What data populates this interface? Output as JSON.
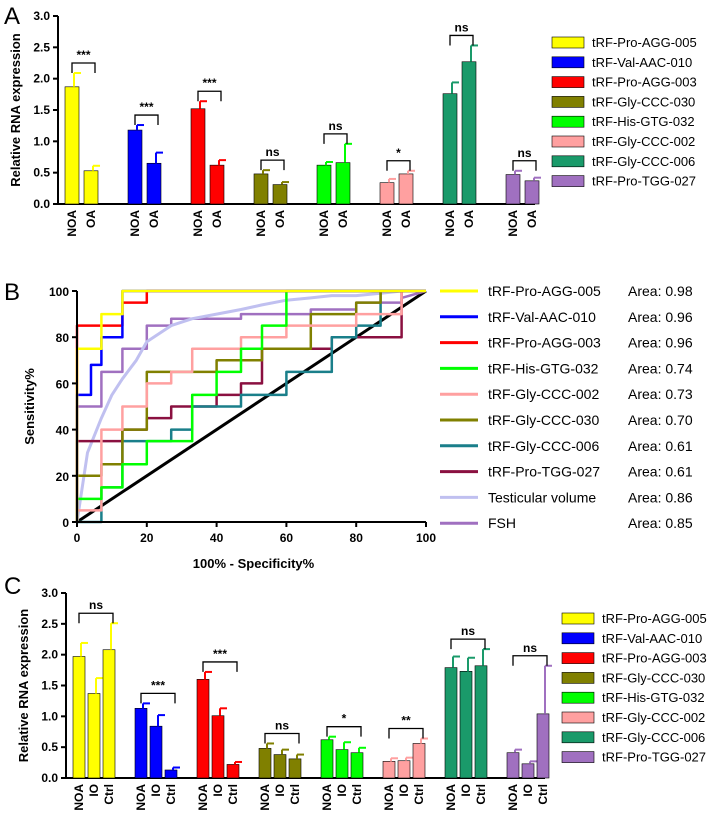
{
  "chart_data": [
    {
      "panel": "A",
      "type": "bar",
      "ylabel": "Relative RNA expression",
      "ylim": [
        0,
        3.0
      ],
      "yticks": [
        "0.0",
        "0.5",
        "1.0",
        "1.5",
        "2.0",
        "2.5",
        "3.0"
      ],
      "groups": [
        {
          "name": "tRF-Pro-AGG-005",
          "color": "#ffff00",
          "bars": [
            {
              "label": "NOA",
              "value": 1.87,
              "err": 0.22
            },
            {
              "label": "OA",
              "value": 0.53,
              "err": 0.08
            }
          ],
          "sig": "***"
        },
        {
          "name": "tRF-Val-AAC-010",
          "color": "#0000ff",
          "bars": [
            {
              "label": "NOA",
              "value": 1.18,
              "err": 0.08
            },
            {
              "label": "OA",
              "value": 0.65,
              "err": 0.17
            }
          ],
          "sig": "***"
        },
        {
          "name": "tRF-Pro-AGG-003",
          "color": "#ff0000",
          "bars": [
            {
              "label": "NOA",
              "value": 1.52,
              "err": 0.12
            },
            {
              "label": "OA",
              "value": 0.62,
              "err": 0.08
            }
          ],
          "sig": "***"
        },
        {
          "name": "tRF-Gly-CCC-030",
          "color": "#808000",
          "bars": [
            {
              "label": "NOA",
              "value": 0.48,
              "err": 0.06
            },
            {
              "label": "OA",
              "value": 0.31,
              "err": 0.04
            }
          ],
          "sig": "ns"
        },
        {
          "name": "tRF-His-GTG-032",
          "color": "#00ff00",
          "bars": [
            {
              "label": "NOA",
              "value": 0.62,
              "err": 0.05
            },
            {
              "label": "OA",
              "value": 0.66,
              "err": 0.3
            }
          ],
          "sig": "ns"
        },
        {
          "name": "tRF-Gly-CCC-002",
          "color": "#ffa0a0",
          "bars": [
            {
              "label": "NOA",
              "value": 0.34,
              "err": 0.06
            },
            {
              "label": "OA",
              "value": 0.48,
              "err": 0.05
            }
          ],
          "sig": "*"
        },
        {
          "name": "tRF-Gly-CCC-006",
          "color": "#1a9a6a",
          "bars": [
            {
              "label": "NOA",
              "value": 1.76,
              "err": 0.18
            },
            {
              "label": "OA",
              "value": 2.27,
              "err": 0.26
            }
          ],
          "sig": "ns"
        },
        {
          "name": "tRF-Pro-TGG-027",
          "color": "#a070c0",
          "bars": [
            {
              "label": "NOA",
              "value": 0.47,
              "err": 0.06
            },
            {
              "label": "OA",
              "value": 0.37,
              "err": 0.05
            }
          ],
          "sig": "ns"
        }
      ],
      "legend": [
        "tRF-Pro-AGG-005",
        "tRF-Val-AAC-010",
        "tRF-Pro-AGG-003",
        "tRF-Gly-CCC-030",
        "tRF-His-GTG-032",
        "tRF-Gly-CCC-002",
        "tRF-Gly-CCC-006",
        "tRF-Pro-TGG-027"
      ],
      "legend_colors": [
        "#ffff00",
        "#0000ff",
        "#ff0000",
        "#808000",
        "#00ff00",
        "#ffa0a0",
        "#1a9a6a",
        "#a070c0"
      ]
    },
    {
      "panel": "B",
      "type": "line",
      "xlabel": "100% - Specificity%",
      "ylabel": "Sensitivity%",
      "xlim": [
        0,
        100
      ],
      "ylim": [
        0,
        100
      ],
      "xticks": [
        "0",
        "20",
        "40",
        "60",
        "80",
        "100"
      ],
      "yticks": [
        "0",
        "20",
        "40",
        "60",
        "80",
        "100"
      ],
      "series": [
        {
          "name": "tRF-Pro-AGG-005",
          "color": "#ffff00",
          "area": "Area: 0.98",
          "x": [
            0,
            0,
            7,
            7,
            13,
            13,
            100
          ],
          "y": [
            0,
            75,
            75,
            90,
            90,
            100,
            100
          ]
        },
        {
          "name": "tRF-Val-AAC-010",
          "color": "#0000ff",
          "x": [
            0,
            0,
            4,
            4,
            7,
            7,
            13,
            13,
            100
          ],
          "y": [
            0,
            55,
            55,
            68,
            68,
            80,
            80,
            100,
            100
          ],
          "area": "Area: 0.96"
        },
        {
          "name": "tRF-Pro-AGG-003",
          "color": "#ff0000",
          "x": [
            0,
            0,
            13,
            13,
            20,
            20,
            100
          ],
          "y": [
            0,
            85,
            85,
            95,
            95,
            100,
            100
          ],
          "area": "Area: 0.96"
        },
        {
          "name": "tRF-His-GTG-032",
          "color": "#00ff00",
          "x": [
            0,
            0,
            7,
            7,
            13,
            13,
            20,
            20,
            33,
            33,
            40,
            40,
            47,
            47,
            53,
            53,
            60,
            60,
            100
          ],
          "y": [
            0,
            10,
            10,
            15,
            15,
            25,
            25,
            35,
            35,
            55,
            55,
            65,
            65,
            75,
            75,
            85,
            85,
            100,
            100
          ],
          "area": "Area: 0.74"
        },
        {
          "name": "tRF-Gly-CCC-002",
          "color": "#ffa0a0",
          "x": [
            0,
            0,
            7,
            7,
            13,
            13,
            20,
            20,
            27,
            27,
            33,
            33,
            47,
            47,
            60,
            60,
            80,
            80,
            93,
            93,
            100
          ],
          "y": [
            0,
            5,
            5,
            40,
            40,
            50,
            50,
            60,
            60,
            65,
            65,
            75,
            75,
            80,
            80,
            85,
            85,
            90,
            90,
            100,
            100
          ],
          "area": "Area: 0.73"
        },
        {
          "name": "tRF-Gly-CCC-030",
          "color": "#808000",
          "x": [
            0,
            0,
            7,
            7,
            13,
            13,
            20,
            20,
            40,
            40,
            53,
            53,
            67,
            67,
            80,
            80,
            87,
            87,
            100
          ],
          "y": [
            0,
            20,
            20,
            25,
            25,
            40,
            40,
            65,
            65,
            70,
            70,
            75,
            75,
            90,
            90,
            95,
            95,
            100,
            100
          ],
          "area": "Area: 0.70"
        },
        {
          "name": "tRF-Gly-CCC-006",
          "color": "#1a7f8a",
          "x": [
            0,
            7,
            7,
            13,
            13,
            27,
            27,
            33,
            33,
            47,
            47,
            60,
            60,
            73,
            73,
            80,
            80,
            87,
            87,
            100
          ],
          "y": [
            0,
            0,
            15,
            15,
            35,
            35,
            40,
            40,
            50,
            50,
            55,
            55,
            65,
            65,
            80,
            80,
            85,
            85,
            100,
            100
          ],
          "area": "Area: 0.61"
        },
        {
          "name": "tRF-Pro-TGG-027",
          "color": "#8a1040",
          "x": [
            0,
            0,
            13,
            13,
            20,
            20,
            27,
            27,
            40,
            40,
            47,
            47,
            53,
            53,
            73,
            73,
            80,
            80,
            93,
            93,
            100
          ],
          "y": [
            0,
            35,
            35,
            40,
            40,
            45,
            45,
            50,
            50,
            55,
            55,
            60,
            60,
            75,
            75,
            80,
            80,
            80,
            80,
            100,
            100
          ],
          "area": "Area: 0.61"
        },
        {
          "name": "Testicular volume",
          "color": "#c0c0f0",
          "x": [
            0,
            3,
            7,
            10,
            13,
            17,
            20,
            27,
            33,
            40,
            47,
            53,
            60,
            67,
            73,
            80,
            87,
            93,
            100
          ],
          "y": [
            0,
            30,
            45,
            55,
            62,
            70,
            78,
            85,
            88,
            90,
            92,
            94,
            96,
            97,
            98,
            98,
            99,
            100,
            100
          ],
          "area": "Area: 0.86",
          "smooth": true
        },
        {
          "name": "FSH",
          "color": "#a070c0",
          "x": [
            0,
            0,
            7,
            7,
            13,
            13,
            20,
            20,
            27,
            27,
            47,
            47,
            67,
            67,
            80,
            80,
            93,
            93,
            100
          ],
          "y": [
            0,
            50,
            50,
            65,
            65,
            75,
            75,
            85,
            85,
            88,
            88,
            90,
            90,
            92,
            92,
            95,
            95,
            97,
            100
          ],
          "area": "Area: 0.85"
        }
      ],
      "diagonal": {
        "color": "#000000",
        "x": [
          0,
          100
        ],
        "y": [
          0,
          100
        ]
      }
    },
    {
      "panel": "C",
      "type": "bar",
      "ylabel": "Relative RNA expression",
      "ylim": [
        0,
        3.0
      ],
      "yticks": [
        "0.0",
        "0.5",
        "1.0",
        "1.5",
        "2.0",
        "2.5",
        "3.0"
      ],
      "groups": [
        {
          "name": "tRF-Pro-AGG-005",
          "color": "#ffff00",
          "bars": [
            {
              "label": "NOA",
              "value": 1.97,
              "err": 0.22
            },
            {
              "label": "IO",
              "value": 1.37,
              "err": 0.25
            },
            {
              "label": "Ctrl",
              "value": 2.08,
              "err": 0.43
            }
          ],
          "sig": "ns"
        },
        {
          "name": "tRF-Val-AAC-010",
          "color": "#0000ff",
          "bars": [
            {
              "label": "NOA",
              "value": 1.13,
              "err": 0.08
            },
            {
              "label": "IO",
              "value": 0.84,
              "err": 0.18
            },
            {
              "label": "Ctrl",
              "value": 0.13,
              "err": 0.04
            }
          ],
          "sig": "***"
        },
        {
          "name": "tRF-Pro-AGG-003",
          "color": "#ff0000",
          "bars": [
            {
              "label": "NOA",
              "value": 1.6,
              "err": 0.12
            },
            {
              "label": "IO",
              "value": 1.01,
              "err": 0.12
            },
            {
              "label": "Ctrl",
              "value": 0.22,
              "err": 0.04
            }
          ],
          "sig": "***"
        },
        {
          "name": "tRF-Gly-CCC-030",
          "color": "#808000",
          "bars": [
            {
              "label": "NOA",
              "value": 0.48,
              "err": 0.08
            },
            {
              "label": "IO",
              "value": 0.38,
              "err": 0.08
            },
            {
              "label": "Ctrl",
              "value": 0.31,
              "err": 0.07
            }
          ],
          "sig": "ns"
        },
        {
          "name": "tRF-His-GTG-032",
          "color": "#00ff00",
          "bars": [
            {
              "label": "NOA",
              "value": 0.62,
              "err": 0.05
            },
            {
              "label": "IO",
              "value": 0.46,
              "err": 0.12
            },
            {
              "label": "Ctrl",
              "value": 0.41,
              "err": 0.08
            }
          ],
          "sig": "*"
        },
        {
          "name": "tRF-Gly-CCC-002",
          "color": "#ffa0a0",
          "bars": [
            {
              "label": "NOA",
              "value": 0.27,
              "err": 0.05
            },
            {
              "label": "IO",
              "value": 0.28,
              "err": 0.05
            },
            {
              "label": "Ctrl",
              "value": 0.56,
              "err": 0.08
            }
          ],
          "sig": "**"
        },
        {
          "name": "tRF-Gly-CCC-006",
          "color": "#1a9a6a",
          "bars": [
            {
              "label": "NOA",
              "value": 1.79,
              "err": 0.18
            },
            {
              "label": "IO",
              "value": 1.73,
              "err": 0.22
            },
            {
              "label": "Ctrl",
              "value": 1.82,
              "err": 0.27
            }
          ],
          "sig": "ns"
        },
        {
          "name": "tRF-Pro-TGG-027",
          "color": "#a070c0",
          "bars": [
            {
              "label": "NOA",
              "value": 0.41,
              "err": 0.05
            },
            {
              "label": "IO",
              "value": 0.23,
              "err": 0.04
            },
            {
              "label": "Ctrl",
              "value": 1.04,
              "err": 0.78
            }
          ],
          "sig": "ns"
        }
      ],
      "legend": [
        "tRF-Pro-AGG-005",
        "tRF-Val-AAC-010",
        "tRF-Pro-AGG-003",
        "tRF-Gly-CCC-030",
        "tRF-His-GTG-032",
        "tRF-Gly-CCC-002",
        "tRF-Gly-CCC-006",
        "tRF-Pro-TGG-027"
      ],
      "legend_colors": [
        "#ffff00",
        "#0000ff",
        "#ff0000",
        "#808000",
        "#00ff00",
        "#ffa0a0",
        "#1a9a6a",
        "#a070c0"
      ]
    }
  ]
}
